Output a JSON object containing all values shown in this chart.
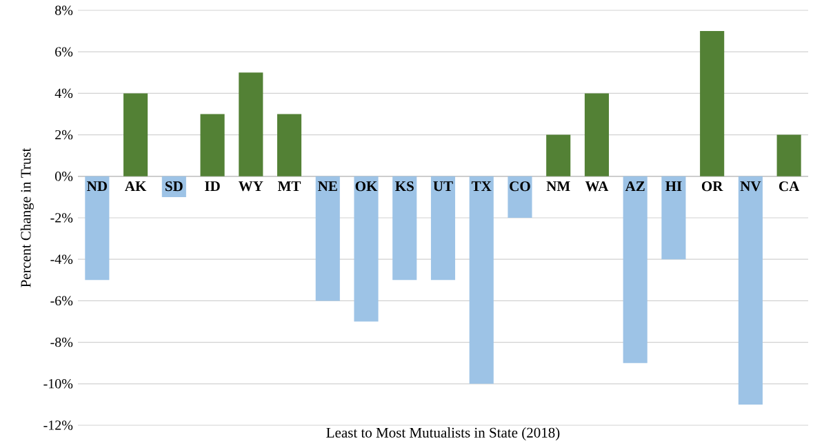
{
  "chart_data": {
    "type": "bar",
    "xlabel": "Least to Most Mutualists in State (2018)",
    "ylabel": "Percent Change in Trust",
    "categories": [
      "ND",
      "AK",
      "SD",
      "ID",
      "WY",
      "MT",
      "NE",
      "OK",
      "KS",
      "UT",
      "TX",
      "CO",
      "NM",
      "WA",
      "AZ",
      "HI",
      "OR",
      "NV",
      "CA"
    ],
    "values": [
      -5,
      4,
      -1,
      3,
      5,
      3,
      -6,
      -7,
      -5,
      -5,
      -10,
      -2,
      2,
      4,
      -9,
      -4,
      7,
      -11,
      2
    ],
    "colors": [
      "#9dc3e6",
      "#538135",
      "#9dc3e6",
      "#538135",
      "#538135",
      "#538135",
      "#9dc3e6",
      "#9dc3e6",
      "#9dc3e6",
      "#9dc3e6",
      "#9dc3e6",
      "#9dc3e6",
      "#538135",
      "#538135",
      "#9dc3e6",
      "#9dc3e6",
      "#538135",
      "#9dc3e6",
      "#538135"
    ],
    "ylim": [
      -12,
      8
    ],
    "yticks": [
      {
        "value": -12,
        "label": "-12%"
      },
      {
        "value": -10,
        "label": "-10%"
      },
      {
        "value": -8,
        "label": "-8%"
      },
      {
        "value": -6,
        "label": "-6%"
      },
      {
        "value": -4,
        "label": "-4%"
      },
      {
        "value": -2,
        "label": "-2%"
      },
      {
        "value": 0,
        "label": "0%"
      },
      {
        "value": 2,
        "label": "2%"
      },
      {
        "value": 4,
        "label": "4%"
      },
      {
        "value": 6,
        "label": "6%"
      },
      {
        "value": 8,
        "label": "8%"
      }
    ],
    "grid": "y"
  }
}
